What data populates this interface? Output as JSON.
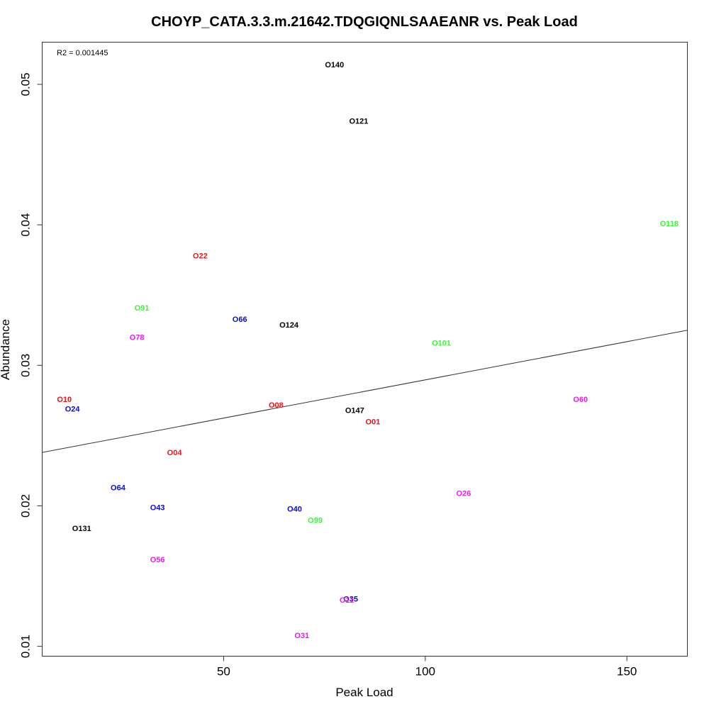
{
  "chart_data": {
    "type": "scatter",
    "title": "CHOYP_CATA.3.3.m.21642.TDQGIQNLSAAEANR vs. Peak Load",
    "xlabel": "Peak Load",
    "ylabel": "Abundance",
    "xlim": [
      5,
      165
    ],
    "ylim": [
      0.0093,
      0.053
    ],
    "x_ticks": [
      50,
      100,
      150
    ],
    "y_ticks": [
      0.01,
      0.02,
      0.03,
      0.04,
      0.05
    ],
    "x_tick_labels": [
      "50",
      "100",
      "150"
    ],
    "y_tick_labels": [
      "0.01",
      "0.02",
      "0.03",
      "0.04",
      "0.05"
    ],
    "annotation": "R2 = 0.001445",
    "regression_line": {
      "x": [
        5,
        165
      ],
      "y": [
        0.0238,
        0.0325
      ]
    },
    "grid": false,
    "legend": "none",
    "colors": {
      "black": "#000000",
      "red": "#e8141c",
      "blue": "#0a0ad2",
      "green": "#3ef23e",
      "magenta": "#e81ee8"
    },
    "points": [
      {
        "label": "O140",
        "x": 77.5,
        "y": 0.0514,
        "color": "black"
      },
      {
        "label": "O121",
        "x": 83.5,
        "y": 0.0474,
        "color": "black"
      },
      {
        "label": "O118",
        "x": 160.5,
        "y": 0.0401,
        "color": "green"
      },
      {
        "label": "O22",
        "x": 44.2,
        "y": 0.0378,
        "color": "red"
      },
      {
        "label": "O91",
        "x": 29.7,
        "y": 0.0341,
        "color": "green"
      },
      {
        "label": "O66",
        "x": 54.0,
        "y": 0.0333,
        "color": "blue"
      },
      {
        "label": "O124",
        "x": 66.2,
        "y": 0.0329,
        "color": "black"
      },
      {
        "label": "O78",
        "x": 28.5,
        "y": 0.032,
        "color": "magenta"
      },
      {
        "label": "O101",
        "x": 104.0,
        "y": 0.0316,
        "color": "green"
      },
      {
        "label": "O10",
        "x": 10.5,
        "y": 0.0276,
        "color": "red"
      },
      {
        "label": "O60",
        "x": 138.5,
        "y": 0.0276,
        "color": "magenta"
      },
      {
        "label": "O08",
        "x": 63.0,
        "y": 0.0272,
        "color": "red"
      },
      {
        "label": "O24",
        "x": 12.5,
        "y": 0.0269,
        "color": "blue"
      },
      {
        "label": "O147",
        "x": 82.5,
        "y": 0.0268,
        "color": "black"
      },
      {
        "label": "O01",
        "x": 87.0,
        "y": 0.026,
        "color": "red"
      },
      {
        "label": "O04",
        "x": 37.8,
        "y": 0.0238,
        "color": "red"
      },
      {
        "label": "O64",
        "x": 23.8,
        "y": 0.0213,
        "color": "blue"
      },
      {
        "label": "O26",
        "x": 109.5,
        "y": 0.0209,
        "color": "magenta"
      },
      {
        "label": "O43",
        "x": 33.6,
        "y": 0.0199,
        "color": "blue"
      },
      {
        "label": "O40",
        "x": 67.6,
        "y": 0.0198,
        "color": "blue"
      },
      {
        "label": "O99",
        "x": 72.7,
        "y": 0.019,
        "color": "green"
      },
      {
        "label": "O131",
        "x": 14.8,
        "y": 0.0184,
        "color": "black"
      },
      {
        "label": "O56",
        "x": 33.6,
        "y": 0.0162,
        "color": "magenta"
      },
      {
        "label": "O35",
        "x": 81.5,
        "y": 0.0134,
        "color": "blue"
      },
      {
        "label": "O11",
        "x": 80.5,
        "y": 0.0133,
        "color": "magenta"
      },
      {
        "label": "O31",
        "x": 69.4,
        "y": 0.0108,
        "color": "magenta"
      }
    ]
  }
}
